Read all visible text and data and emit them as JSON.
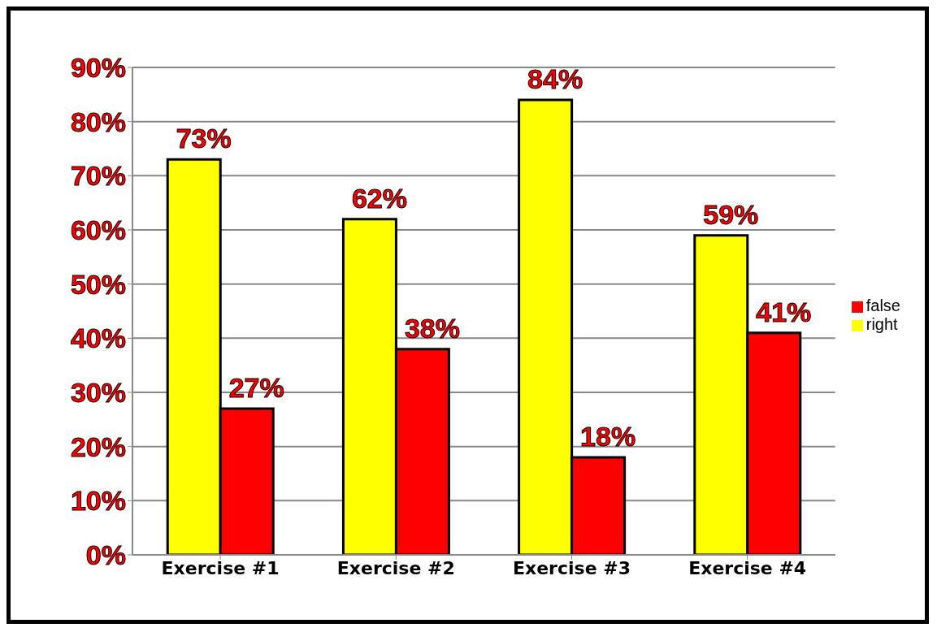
{
  "chart_data": {
    "type": "bar",
    "categories": [
      "Exercise #1",
      "Exercise #2",
      "Exercise #3",
      "Exercise #4"
    ],
    "series": [
      {
        "name": "right",
        "color": "#ffff00",
        "values": [
          73,
          62,
          84,
          59
        ],
        "value_labels": [
          "73%",
          "62%",
          "84%",
          "59%"
        ]
      },
      {
        "name": "false",
        "color": "#ff0000",
        "values": [
          27,
          38,
          18,
          41
        ],
        "value_labels": [
          "27%",
          "38%",
          "18%",
          "41%"
        ]
      }
    ],
    "ylim": [
      0,
      90
    ],
    "yticks": [
      {
        "value": 0,
        "label": "0%"
      },
      {
        "value": 10,
        "label": "10%"
      },
      {
        "value": 20,
        "label": "20%"
      },
      {
        "value": 30,
        "label": "30%"
      },
      {
        "value": 40,
        "label": "40%"
      },
      {
        "value": 50,
        "label": "50%"
      },
      {
        "value": 60,
        "label": "60%"
      },
      {
        "value": 70,
        "label": "70%"
      },
      {
        "value": 80,
        "label": "80%"
      },
      {
        "value": 90,
        "label": "90%"
      }
    ],
    "grid": "y",
    "legend": "right"
  }
}
